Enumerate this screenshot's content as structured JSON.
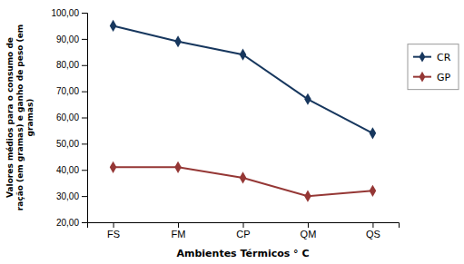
{
  "chart_data": {
    "type": "line",
    "categories": [
      "FS",
      "FM",
      "CP",
      "QM",
      "QS"
    ],
    "series": [
      {
        "name": "CR",
        "color": "#17375E",
        "values": [
          95.0,
          89.0,
          84.0,
          67.0,
          54.0
        ],
        "marker": "diamond"
      },
      {
        "name": "GP",
        "color": "#953735",
        "values": [
          41.0,
          41.0,
          37.0,
          30.0,
          32.0
        ],
        "marker": "diamond"
      }
    ],
    "xlabel": "Ambientes Térmicos ° C",
    "ylabel": "Valores médios para o consumo de\nração (em gramas) e ganho de peso (em\ngramas)",
    "ylim": [
      20.0,
      100.0
    ],
    "yticks": [
      {
        "value": 20.0,
        "label": "20,00"
      },
      {
        "value": 30.0,
        "label": "30,00"
      },
      {
        "value": 40.0,
        "label": "40,00"
      },
      {
        "value": 50.0,
        "label": "50,00"
      },
      {
        "value": 60.0,
        "label": "60,00"
      },
      {
        "value": 70.0,
        "label": "70,00"
      },
      {
        "value": 80.0,
        "label": "80,00"
      },
      {
        "value": 90.0,
        "label": "90,00"
      },
      {
        "value": 100.0,
        "label": "100,00"
      }
    ],
    "grid": false,
    "legend": "right"
  }
}
